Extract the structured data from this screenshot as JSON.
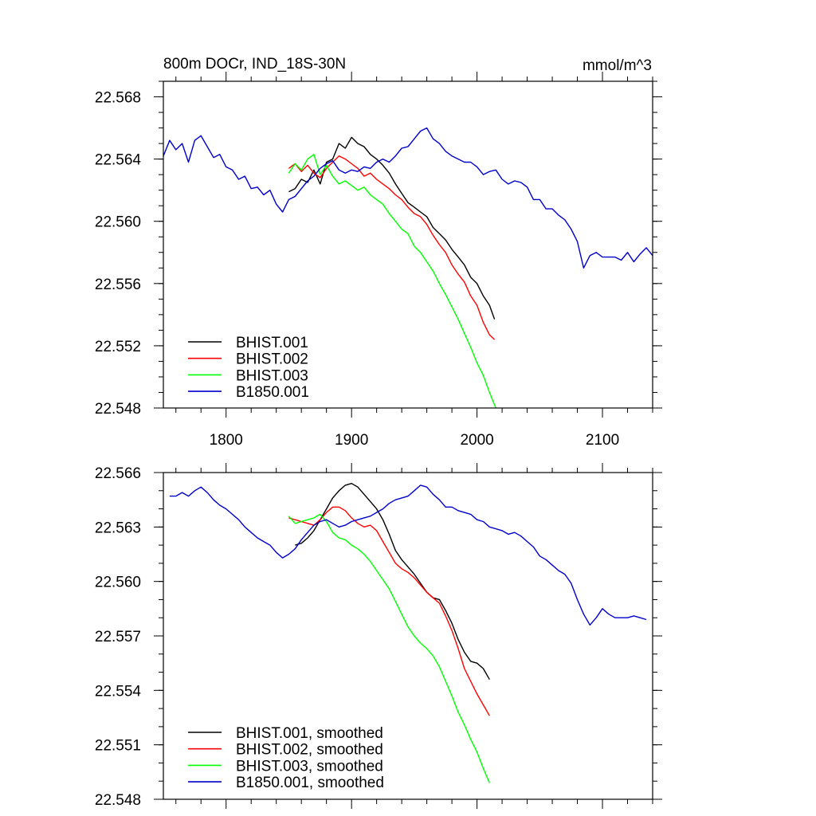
{
  "chart_data": [
    {
      "type": "line",
      "title": "800m DOCr, IND_18S-30N",
      "units": "mmol/m^3",
      "xlabel": "",
      "ylabel": "",
      "xlim": [
        1750,
        2140
      ],
      "ylim": [
        22.548,
        22.569
      ],
      "xticks": [
        1800,
        1900,
        2000,
        2100
      ],
      "xtick_labels": [
        "1800",
        "1900",
        "2000",
        "2100"
      ],
      "yticks": [
        22.548,
        22.552,
        22.556,
        22.56,
        22.564,
        22.568
      ],
      "ytick_labels": [
        "22.548",
        "22.552",
        "22.556",
        "22.560",
        "22.564",
        "22.568"
      ],
      "grid": false,
      "legend_position": "bottom-left",
      "series": [
        {
          "name": "BHIST.001",
          "color": "#000000",
          "x": [
            1850,
            1855,
            1860,
            1865,
            1870,
            1875,
            1880,
            1885,
            1890,
            1895,
            1900,
            1905,
            1910,
            1915,
            1920,
            1925,
            1930,
            1935,
            1940,
            1945,
            1950,
            1955,
            1960,
            1965,
            1970,
            1975,
            1980,
            1985,
            1990,
            1995,
            2000,
            2005,
            2010,
            2014
          ],
          "values": [
            22.5619,
            22.5621,
            22.5627,
            22.5625,
            22.5633,
            22.5624,
            22.5638,
            22.564,
            22.565,
            22.5647,
            22.5654,
            22.565,
            22.5648,
            22.5643,
            22.564,
            22.5636,
            22.5631,
            22.5624,
            22.5618,
            22.5612,
            22.5609,
            22.5606,
            22.5603,
            22.5596,
            22.5592,
            22.5588,
            22.5582,
            22.5577,
            22.5572,
            22.5564,
            22.556,
            22.5552,
            22.5546,
            22.5537
          ]
        },
        {
          "name": "BHIST.002",
          "color": "#ff0000",
          "x": [
            1850,
            1855,
            1860,
            1865,
            1870,
            1875,
            1880,
            1885,
            1890,
            1895,
            1900,
            1905,
            1910,
            1915,
            1920,
            1925,
            1930,
            1935,
            1940,
            1945,
            1950,
            1955,
            1960,
            1965,
            1970,
            1975,
            1980,
            1985,
            1990,
            1995,
            2000,
            2005,
            2010,
            2014
          ],
          "values": [
            22.5634,
            22.5637,
            22.5632,
            22.5636,
            22.5631,
            22.5628,
            22.5634,
            22.5638,
            22.5642,
            22.564,
            22.5637,
            22.5634,
            22.5629,
            22.5631,
            22.5627,
            22.5624,
            22.5621,
            22.5617,
            22.5614,
            22.5609,
            22.5605,
            22.5603,
            22.5598,
            22.5591,
            22.5585,
            22.558,
            22.5572,
            22.5566,
            22.5561,
            22.5552,
            22.5546,
            22.5535,
            22.5527,
            22.5524
          ]
        },
        {
          "name": "BHIST.003",
          "color": "#00ff00",
          "x": [
            1850,
            1855,
            1860,
            1865,
            1870,
            1875,
            1880,
            1885,
            1890,
            1895,
            1900,
            1905,
            1910,
            1915,
            1920,
            1925,
            1930,
            1935,
            1940,
            1945,
            1950,
            1955,
            1960,
            1965,
            1970,
            1975,
            1980,
            1985,
            1990,
            1995,
            2000,
            2005,
            2010,
            2015
          ],
          "values": [
            22.5631,
            22.5637,
            22.5633,
            22.564,
            22.5643,
            22.563,
            22.5636,
            22.5629,
            22.5624,
            22.5626,
            22.5623,
            22.562,
            22.5622,
            22.5617,
            22.5614,
            22.5611,
            22.5605,
            22.56,
            22.5595,
            22.5592,
            22.5584,
            22.558,
            22.5574,
            22.5568,
            22.556,
            22.5553,
            22.5545,
            22.5537,
            22.5528,
            22.5519,
            22.5509,
            22.5501,
            22.549,
            22.548
          ]
        },
        {
          "name": "B1850.001",
          "color": "#0000cc",
          "x": [
            1750,
            1755,
            1760,
            1765,
            1770,
            1775,
            1780,
            1785,
            1790,
            1795,
            1800,
            1805,
            1810,
            1815,
            1820,
            1825,
            1830,
            1835,
            1840,
            1845,
            1850,
            1855,
            1860,
            1865,
            1870,
            1875,
            1880,
            1885,
            1890,
            1895,
            1900,
            1905,
            1910,
            1915,
            1920,
            1925,
            1930,
            1935,
            1940,
            1945,
            1950,
            1955,
            1960,
            1965,
            1970,
            1975,
            1980,
            1985,
            1990,
            1995,
            2000,
            2005,
            2010,
            2015,
            2020,
            2025,
            2030,
            2035,
            2040,
            2045,
            2050,
            2055,
            2060,
            2065,
            2070,
            2075,
            2080,
            2085,
            2090,
            2095,
            2100,
            2105,
            2110,
            2115,
            2120,
            2125,
            2130,
            2135,
            2140
          ],
          "values": [
            22.5642,
            22.5652,
            22.5646,
            22.565,
            22.5638,
            22.5652,
            22.5655,
            22.5648,
            22.5641,
            22.5643,
            22.5635,
            22.5633,
            22.5627,
            22.5629,
            22.5621,
            22.5622,
            22.5617,
            22.562,
            22.5611,
            22.5606,
            22.5614,
            22.5616,
            22.5621,
            22.5626,
            22.5629,
            22.5634,
            22.5637,
            22.5639,
            22.5633,
            22.5631,
            22.5633,
            22.5632,
            22.5635,
            22.5634,
            22.5638,
            22.564,
            22.5638,
            22.5642,
            22.5647,
            22.5648,
            22.5653,
            22.5658,
            22.566,
            22.5653,
            22.565,
            22.5645,
            22.5642,
            22.564,
            22.5638,
            22.5638,
            22.5635,
            22.563,
            22.5632,
            22.5633,
            22.5627,
            22.5624,
            22.5626,
            22.5625,
            22.5622,
            22.5614,
            22.5614,
            22.5608,
            22.5608,
            22.5604,
            22.5601,
            22.5595,
            22.5587,
            22.557,
            22.5578,
            22.558,
            22.5577,
            22.5577,
            22.5577,
            22.5575,
            22.558,
            22.5574,
            22.5579,
            22.5583,
            22.5578
          ]
        }
      ]
    },
    {
      "type": "line",
      "title": "",
      "xlabel": "",
      "ylabel": "",
      "xlim": [
        1750,
        2140
      ],
      "ylim": [
        22.548,
        22.566
      ],
      "xticks": [
        1800,
        1900,
        2000,
        2100
      ],
      "yticks": [
        22.548,
        22.551,
        22.554,
        22.557,
        22.56,
        22.563,
        22.566
      ],
      "ytick_labels": [
        "22.548",
        "22.551",
        "22.554",
        "22.557",
        "22.560",
        "22.563",
        "22.566"
      ],
      "grid": false,
      "legend_position": "bottom-left",
      "series": [
        {
          "name": "BHIST.001, smoothed",
          "color": "#000000",
          "x": [
            1855,
            1860,
            1865,
            1870,
            1875,
            1880,
            1885,
            1890,
            1895,
            1900,
            1905,
            1910,
            1915,
            1920,
            1925,
            1930,
            1935,
            1940,
            1945,
            1950,
            1955,
            1960,
            1965,
            1970,
            1975,
            1980,
            1985,
            1990,
            1995,
            2000,
            2005,
            2010
          ],
          "values": [
            22.562,
            22.5621,
            22.5624,
            22.5628,
            22.5634,
            22.564,
            22.5646,
            22.565,
            22.5653,
            22.5654,
            22.5652,
            22.5648,
            22.5644,
            22.564,
            22.5634,
            22.5626,
            22.5617,
            22.5612,
            22.5608,
            22.5604,
            22.5599,
            22.5594,
            22.5591,
            22.559,
            22.5584,
            22.5577,
            22.5568,
            22.5561,
            22.5556,
            22.5555,
            22.5552,
            22.5546
          ]
        },
        {
          "name": "BHIST.002, smoothed",
          "color": "#ff0000",
          "x": [
            1850,
            1855,
            1860,
            1865,
            1870,
            1875,
            1880,
            1885,
            1890,
            1895,
            1900,
            1905,
            1910,
            1915,
            1920,
            1925,
            1930,
            1935,
            1940,
            1945,
            1950,
            1955,
            1960,
            1965,
            1970,
            1975,
            1980,
            1985,
            1990,
            1995,
            2000,
            2005,
            2010
          ],
          "values": [
            22.5635,
            22.5634,
            22.5633,
            22.5632,
            22.5631,
            22.5634,
            22.5638,
            22.5641,
            22.5641,
            22.5639,
            22.5635,
            22.5632,
            22.563,
            22.5631,
            22.5628,
            22.5622,
            22.5616,
            22.561,
            22.5607,
            22.5605,
            22.5602,
            22.5598,
            22.5594,
            22.5591,
            22.5588,
            22.5581,
            22.5573,
            22.5563,
            22.5552,
            22.5545,
            22.5538,
            22.5532,
            22.5526
          ]
        },
        {
          "name": "BHIST.003, smoothed",
          "color": "#00ff00",
          "x": [
            1850,
            1855,
            1860,
            1865,
            1870,
            1875,
            1880,
            1885,
            1890,
            1895,
            1900,
            1905,
            1910,
            1915,
            1920,
            1925,
            1930,
            1935,
            1940,
            1945,
            1950,
            1955,
            1960,
            1965,
            1970,
            1975,
            1980,
            1985,
            1990,
            1995,
            2000,
            2005,
            2010
          ],
          "values": [
            22.5636,
            22.5632,
            22.5633,
            22.5634,
            22.5635,
            22.5637,
            22.5633,
            22.5627,
            22.5624,
            22.5623,
            22.562,
            22.5618,
            22.5615,
            22.5611,
            22.5606,
            22.5601,
            22.5596,
            22.5589,
            22.5582,
            22.5575,
            22.557,
            22.5566,
            22.5563,
            22.5559,
            22.5553,
            22.5545,
            22.5537,
            22.5528,
            22.5521,
            22.5513,
            22.5506,
            22.5497,
            22.5489
          ]
        },
        {
          "name": "B1850.001, smoothed",
          "color": "#0000cc",
          "x": [
            1755,
            1760,
            1765,
            1770,
            1775,
            1780,
            1785,
            1790,
            1795,
            1800,
            1805,
            1810,
            1815,
            1820,
            1825,
            1830,
            1835,
            1840,
            1845,
            1850,
            1855,
            1860,
            1865,
            1870,
            1875,
            1880,
            1885,
            1890,
            1895,
            1900,
            1905,
            1910,
            1915,
            1920,
            1925,
            1930,
            1935,
            1940,
            1945,
            1950,
            1955,
            1960,
            1965,
            1970,
            1975,
            1980,
            1985,
            1990,
            1995,
            2000,
            2005,
            2010,
            2015,
            2020,
            2025,
            2030,
            2035,
            2040,
            2045,
            2050,
            2055,
            2060,
            2065,
            2070,
            2075,
            2080,
            2085,
            2090,
            2095,
            2100,
            2105,
            2110,
            2115,
            2120,
            2125,
            2130,
            2135
          ],
          "values": [
            22.5647,
            22.5647,
            22.5649,
            22.5647,
            22.565,
            22.5652,
            22.5649,
            22.5645,
            22.5642,
            22.564,
            22.5637,
            22.5634,
            22.563,
            22.5627,
            22.5624,
            22.5622,
            22.562,
            22.5616,
            22.5613,
            22.5615,
            22.5618,
            22.5623,
            22.5627,
            22.5631,
            22.5633,
            22.5634,
            22.5632,
            22.563,
            22.5631,
            22.5633,
            22.5634,
            22.5635,
            22.5636,
            22.5638,
            22.564,
            22.5643,
            22.5645,
            22.5646,
            22.5647,
            22.565,
            22.5653,
            22.5652,
            22.5648,
            22.5645,
            22.5641,
            22.5641,
            22.5639,
            22.5638,
            22.5637,
            22.5634,
            22.5633,
            22.563,
            22.5629,
            22.5628,
            22.5626,
            22.5627,
            22.5625,
            22.5622,
            22.5619,
            22.5614,
            22.5612,
            22.5609,
            22.5606,
            22.5604,
            22.5599,
            22.559,
            22.5582,
            22.5576,
            22.558,
            22.5585,
            22.5582,
            22.558,
            22.558,
            22.558,
            22.5581,
            22.558,
            22.5579
          ]
        }
      ]
    }
  ]
}
